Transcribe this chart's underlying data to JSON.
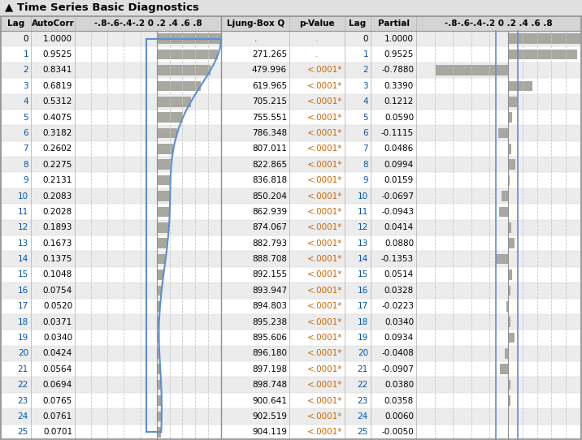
{
  "title": "▲ Time Series Basic Diagnostics",
  "lags": [
    0,
    1,
    2,
    3,
    4,
    5,
    6,
    7,
    8,
    9,
    10,
    11,
    12,
    13,
    14,
    15,
    16,
    17,
    18,
    19,
    20,
    21,
    22,
    23,
    24,
    25
  ],
  "autocorr": [
    1.0,
    0.9525,
    0.8341,
    0.6819,
    0.5312,
    0.4075,
    0.3182,
    0.2602,
    0.2275,
    0.2131,
    0.2083,
    0.2028,
    0.1893,
    0.1673,
    0.1375,
    0.1048,
    0.0754,
    0.052,
    0.0371,
    0.034,
    0.0424,
    0.0564,
    0.0694,
    0.0765,
    0.0761,
    0.0701
  ],
  "ljung_box_q": [
    null,
    271.265,
    479.996,
    619.965,
    705.215,
    755.551,
    786.348,
    807.011,
    822.865,
    836.818,
    850.204,
    862.939,
    874.067,
    882.793,
    888.708,
    892.155,
    893.947,
    894.803,
    895.238,
    895.606,
    896.18,
    897.198,
    898.748,
    900.641,
    902.519,
    904.119
  ],
  "p_value_text": [
    ".",
    ".",
    "<.0001*",
    "<.0001*",
    "<.0001*",
    "<.0001*",
    "<.0001*",
    "<.0001*",
    "<.0001*",
    "<.0001*",
    "<.0001*",
    "<.0001*",
    "<.0001*",
    "<.0001*",
    "<.0001*",
    "<.0001*",
    "<.0001*",
    "<.0001*",
    "<.0001*",
    "<.0001*",
    "<.0001*",
    "<.0001*",
    "<.0001*",
    "<.0001*",
    "<.0001*",
    "<.0001*"
  ],
  "partial": [
    1.0,
    0.9525,
    -0.788,
    0.339,
    0.1212,
    0.059,
    -0.1115,
    0.0486,
    0.0994,
    0.0159,
    -0.0697,
    -0.0943,
    0.0414,
    0.088,
    -0.1353,
    0.0514,
    0.0328,
    -0.0223,
    0.034,
    0.0934,
    -0.0408,
    -0.0907,
    0.038,
    0.0358,
    0.006,
    -0.005
  ],
  "ci_val": 0.13,
  "bar_color": "#a8a8a0",
  "line_color": "#5b8fd4",
  "text_blue": "#0055aa",
  "text_orange": "#cc6600",
  "text_black": "#000000",
  "hdr_color": "#d4d4d4",
  "row_even": "#ececec",
  "row_odd": "#ffffff",
  "title_bg": "#e0e0e0",
  "border_color": "#909090",
  "sep_color": "#b8b8b8",
  "grid_color": "#c8c8c8"
}
